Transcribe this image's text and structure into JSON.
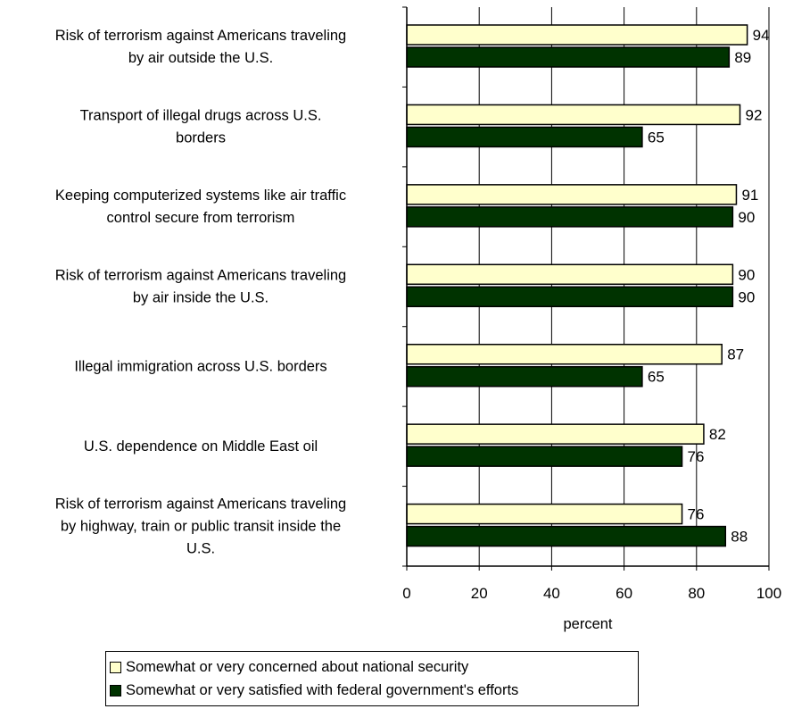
{
  "colors": {
    "series1": "#ffffcc",
    "series2": "#003300",
    "gridline": "#000000",
    "border": "#000000"
  },
  "chart_data": {
    "type": "bar",
    "orientation": "horizontal",
    "categories": [
      [
        "Risk of terrorism against Americans traveling",
        "by air outside the U.S."
      ],
      [
        "Transport of illegal drugs across U.S.",
        "borders"
      ],
      [
        "Keeping computerized systems like air traffic",
        "control secure from terrorism"
      ],
      [
        "Risk of terrorism against Americans traveling",
        "by air inside the U.S."
      ],
      [
        "Illegal immigration across U.S. borders"
      ],
      [
        "U.S. dependence on Middle East oil"
      ],
      [
        "Risk of terrorism against Americans traveling",
        "by highway, train or public transit inside the",
        "U.S."
      ]
    ],
    "series": [
      {
        "name": "Somewhat or very concerned about national security",
        "values": [
          94,
          92,
          91,
          90,
          87,
          82,
          76
        ]
      },
      {
        "name": "Somewhat or very satisfied with federal government's efforts",
        "values": [
          89,
          65,
          90,
          90,
          65,
          76,
          88
        ]
      }
    ],
    "xlabel": "percent",
    "xlim": [
      0,
      100
    ],
    "xticks": [
      "0",
      "20",
      "40",
      "60",
      "80",
      "100"
    ],
    "grid": "vertical",
    "legend_position": "bottom"
  }
}
